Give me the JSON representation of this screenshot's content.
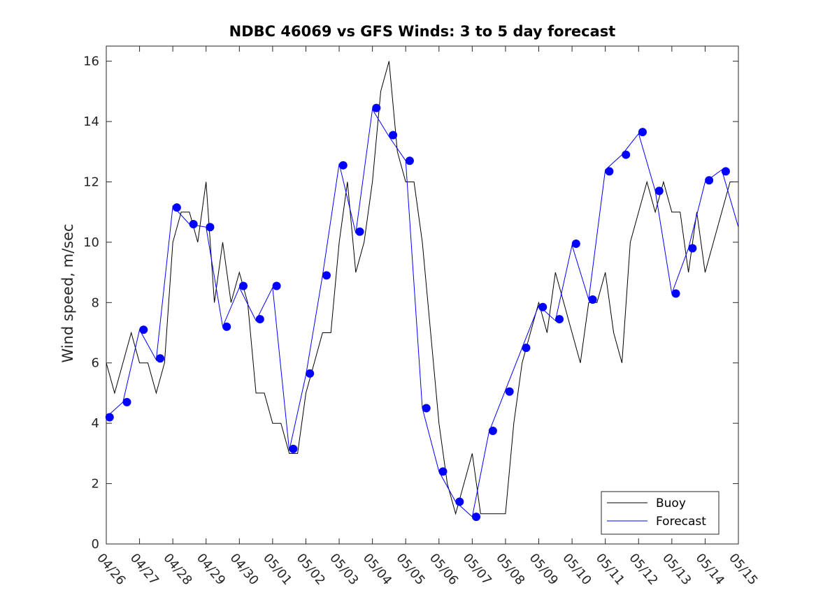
{
  "chart_data": {
    "type": "line",
    "title": "NDBC 46069 vs GFS Winds: 3 to 5 day forecast",
    "xlabel": "",
    "ylabel": "Wind speed, m/sec",
    "xlim": [
      "04/26",
      "05/15"
    ],
    "ylim": [
      0,
      16.5
    ],
    "x_ticks": [
      "04/26",
      "04/27",
      "04/28",
      "04/29",
      "04/30",
      "05/01",
      "05/02",
      "05/03",
      "05/04",
      "05/05",
      "05/06",
      "05/07",
      "05/08",
      "05/09",
      "05/10",
      "05/11",
      "05/12",
      "05/13",
      "05/14",
      "05/15"
    ],
    "y_ticks": [
      0,
      2,
      4,
      6,
      8,
      10,
      12,
      14,
      16
    ],
    "grid": false,
    "legend": {
      "position": "bottom-right",
      "entries": [
        "Buoy",
        "Forecast"
      ]
    },
    "colors": {
      "buoy": "#000000",
      "forecast": "#0000ff",
      "markers": "#0000ff"
    },
    "series": [
      {
        "name": "Buoy",
        "x_days_from_04_26": [
          0,
          0.25,
          0.5,
          0.75,
          1.0,
          1.25,
          1.5,
          1.75,
          2.0,
          2.25,
          2.5,
          2.75,
          3.0,
          3.25,
          3.5,
          3.75,
          4.0,
          4.25,
          4.5,
          4.75,
          5.0,
          5.25,
          5.5,
          5.75,
          6.0,
          6.25,
          6.5,
          6.75,
          7.0,
          7.25,
          7.5,
          7.75,
          8.0,
          8.25,
          8.5,
          8.75,
          9.0,
          9.25,
          9.5,
          9.75,
          10.0,
          10.25,
          10.5,
          10.75,
          11.0,
          11.25,
          11.5,
          11.75,
          12.0,
          12.25,
          12.5,
          12.75,
          13.0,
          13.25,
          13.5,
          13.75,
          14.0,
          14.25,
          14.5,
          14.75,
          15.0,
          15.25,
          15.5,
          15.75,
          16.0,
          16.25,
          16.5,
          16.75,
          17.0,
          17.25,
          17.5,
          17.75,
          18.0,
          18.25,
          18.5,
          18.75,
          19.0
        ],
        "values": [
          6,
          5,
          6,
          7,
          6,
          6,
          5,
          6,
          10,
          11,
          11,
          10,
          12,
          8,
          10,
          8,
          9,
          8,
          5,
          5,
          4,
          4,
          3,
          3,
          5,
          6,
          7,
          7,
          10,
          12,
          9,
          10,
          12,
          15,
          16,
          13,
          12,
          12,
          10,
          7,
          4,
          2,
          1,
          2,
          3,
          1,
          1,
          1,
          1,
          4,
          6,
          7,
          8,
          7,
          9,
          8,
          7,
          6,
          8,
          8,
          9,
          7,
          6,
          10,
          11,
          12,
          11,
          12,
          11,
          11,
          9,
          11,
          9,
          10,
          11,
          12,
          12
        ]
      },
      {
        "name": "Forecast",
        "x_days_from_04_26": [
          0,
          0.5,
          1.0,
          1.5,
          2.0,
          2.5,
          3.0,
          3.5,
          4.0,
          4.5,
          5.0,
          5.5,
          6.0,
          6.5,
          7.0,
          7.5,
          8.0,
          8.5,
          9.0,
          9.5,
          10.0,
          10.5,
          11.0,
          11.5,
          12.0,
          12.5,
          13.0,
          13.5,
          14.0,
          14.5,
          15.0,
          15.5,
          16.0,
          16.5,
          17.0,
          17.5,
          18.0,
          18.5,
          19.0
        ],
        "values": [
          4.2,
          4.7,
          7.1,
          6.1,
          11.2,
          10.6,
          10.5,
          7.2,
          8.5,
          7.4,
          8.5,
          3.1,
          5.6,
          8.9,
          12.6,
          10.3,
          14.4,
          13.5,
          12.7,
          4.5,
          2.4,
          1.4,
          0.9,
          3.7,
          5.1,
          6.5,
          7.9,
          7.4,
          9.9,
          8.1,
          12.4,
          12.9,
          13.6,
          11.7,
          8.3,
          9.8,
          12.0,
          12.4,
          10.5
        ]
      }
    ],
    "markers": {
      "x_days_from_04_26": [
        0.1,
        0.62,
        1.12,
        1.62,
        2.12,
        2.62,
        3.12,
        3.62,
        4.12,
        4.62,
        5.12,
        5.62,
        6.12,
        6.62,
        7.12,
        7.62,
        8.12,
        8.62,
        9.12,
        9.62,
        10.12,
        10.62,
        11.12,
        11.62,
        12.12,
        12.62,
        13.12,
        13.62,
        14.12,
        14.62,
        15.12,
        15.62,
        16.12,
        16.62,
        17.12,
        17.62,
        18.12,
        18.62
      ],
      "values": [
        4.2,
        4.7,
        7.1,
        6.15,
        11.15,
        10.6,
        10.5,
        7.2,
        8.55,
        7.45,
        8.55,
        3.15,
        5.65,
        8.9,
        12.55,
        10.35,
        14.45,
        13.55,
        12.7,
        4.5,
        2.4,
        1.4,
        0.9,
        3.75,
        5.05,
        6.5,
        7.85,
        7.45,
        9.95,
        8.1,
        12.35,
        12.9,
        13.65,
        11.7,
        8.3,
        9.8,
        12.05,
        12.35
      ]
    }
  }
}
